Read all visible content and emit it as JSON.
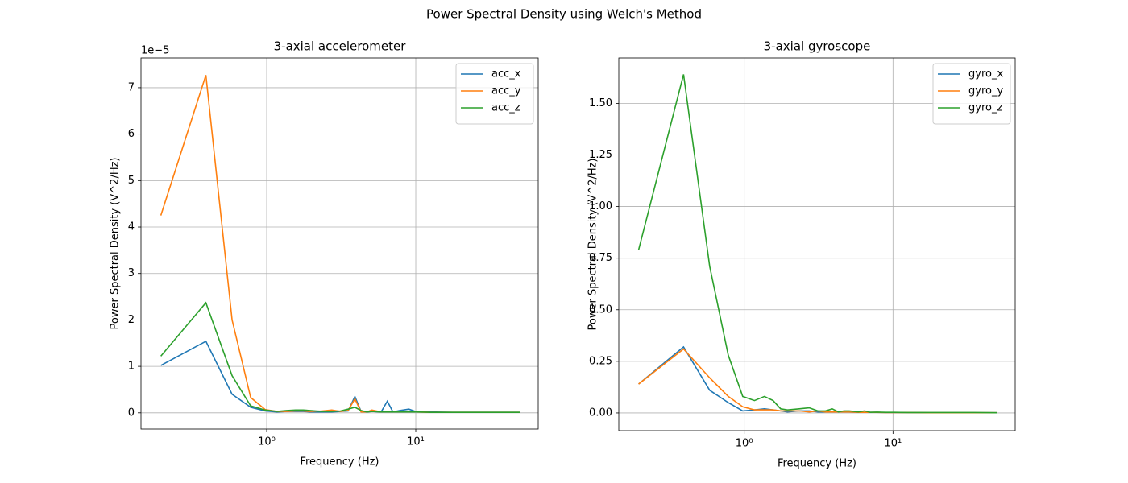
{
  "title": "Power Spectral Density using Welch's Method",
  "chart_data": [
    {
      "type": "line",
      "title": "3-axial accelerometer",
      "x_label": "Frequency (Hz)",
      "y_label": "Power Spectral Density (V^2/Hz)",
      "y_offset_label": "1e−5",
      "x_scale": "log",
      "grid": true,
      "legend": "upper right",
      "x": [
        0.195,
        0.391,
        0.586,
        0.781,
        0.977,
        1.172,
        1.367,
        1.563,
        1.758,
        1.953,
        2.344,
        2.734,
        3.125,
        3.516,
        3.906,
        4.297,
        4.688,
        5.078,
        5.859,
        6.445,
        7.031,
        7.813,
        8.984,
        10.16,
        12.5,
        17.6,
        25,
        35,
        50
      ],
      "series": [
        {
          "name": "acc_x",
          "color": "#1f77b4",
          "values": [
            1.02,
            1.54,
            0.4,
            0.12,
            0.04,
            0.02,
            0.03,
            0.03,
            0.03,
            0.02,
            0.02,
            0.02,
            0.03,
            0.04,
            0.35,
            0.03,
            0.02,
            0.03,
            0.02,
            0.25,
            0.02,
            0.05,
            0.08,
            0.02,
            0.02,
            0.01,
            0.01,
            0.01,
            0.01
          ]
        },
        {
          "name": "acc_y",
          "color": "#ff7f0e",
          "values": [
            4.25,
            7.27,
            2.0,
            0.33,
            0.07,
            0.03,
            0.03,
            0.04,
            0.04,
            0.03,
            0.04,
            0.06,
            0.03,
            0.05,
            0.3,
            0.02,
            0.02,
            0.06,
            0.02,
            0.02,
            0.02,
            0.03,
            0.02,
            0.02,
            0.01,
            0.01,
            0.01,
            0.01,
            0.01
          ]
        },
        {
          "name": "acc_z",
          "color": "#2ca02c",
          "values": [
            1.22,
            2.37,
            0.8,
            0.15,
            0.06,
            0.03,
            0.05,
            0.06,
            0.06,
            0.05,
            0.03,
            0.03,
            0.04,
            0.08,
            0.12,
            0.05,
            0.02,
            0.03,
            0.02,
            0.02,
            0.02,
            0.02,
            0.02,
            0.02,
            0.01,
            0.01,
            0.01,
            0.01,
            0.01
          ]
        }
      ],
      "xlim": [
        0.1435,
        66.3
      ],
      "xticks": [
        {
          "value": 1,
          "label": "10⁰"
        },
        {
          "value": 10,
          "label": "10¹"
        }
      ],
      "ylim": [
        -0.35,
        7.64
      ],
      "yticks": [
        0,
        1,
        2,
        3,
        4,
        5,
        6,
        7
      ]
    },
    {
      "type": "line",
      "title": "3-axial gyroscope",
      "x_label": "Frequency (Hz)",
      "y_label": "Power Spectral Density (V^2/Hz)",
      "x_scale": "log",
      "grid": true,
      "legend": "upper right",
      "x": [
        0.195,
        0.391,
        0.586,
        0.781,
        0.977,
        1.172,
        1.367,
        1.563,
        1.758,
        1.953,
        2.344,
        2.734,
        3.125,
        3.516,
        3.906,
        4.297,
        4.688,
        5.078,
        5.859,
        6.445,
        7.031,
        7.813,
        8.984,
        10.16,
        12.5,
        17.6,
        25,
        35,
        50
      ],
      "series": [
        {
          "name": "gyro_x",
          "color": "#1f77b4",
          "values": [
            0.14,
            0.32,
            0.11,
            0.05,
            0.01,
            0.015,
            0.02,
            0.015,
            0.01,
            0.005,
            0.01,
            0.01,
            0.005,
            0.005,
            0.005,
            0.005,
            0.005,
            0.005,
            0.003,
            0.003,
            0.003,
            0.003,
            0.002,
            0.002,
            0.002,
            0.001,
            0.001,
            0.001,
            0.001
          ]
        },
        {
          "name": "gyro_y",
          "color": "#ff7f0e",
          "values": [
            0.14,
            0.31,
            0.17,
            0.08,
            0.03,
            0.015,
            0.015,
            0.015,
            0.01,
            0.01,
            0.01,
            0.005,
            0.01,
            0.005,
            0.005,
            0.005,
            0.005,
            0.005,
            0.003,
            0.003,
            0.003,
            0.003,
            0.002,
            0.002,
            0.002,
            0.001,
            0.001,
            0.001,
            0.001
          ]
        },
        {
          "name": "gyro_z",
          "color": "#2ca02c",
          "values": [
            0.79,
            1.64,
            0.71,
            0.28,
            0.08,
            0.06,
            0.08,
            0.06,
            0.02,
            0.015,
            0.02,
            0.025,
            0.01,
            0.01,
            0.02,
            0.005,
            0.01,
            0.01,
            0.005,
            0.01,
            0.003,
            0.004,
            0.003,
            0.003,
            0.002,
            0.002,
            0.002,
            0.002,
            0.001
          ]
        }
      ],
      "xlim": [
        0.1435,
        66.3
      ],
      "xticks": [
        {
          "value": 1,
          "label": "10⁰"
        },
        {
          "value": 10,
          "label": "10¹"
        }
      ],
      "ylim": [
        -0.086,
        1.72
      ],
      "yticks": [
        {
          "value": 0,
          "label": "0.00"
        },
        {
          "value": 0.25,
          "label": "0.25"
        },
        {
          "value": 0.5,
          "label": "0.50"
        },
        {
          "value": 0.75,
          "label": "0.75"
        },
        {
          "value": 1,
          "label": "1.00"
        },
        {
          "value": 1.25,
          "label": "1.25"
        },
        {
          "value": 1.5,
          "label": "1.50"
        }
      ]
    }
  ]
}
